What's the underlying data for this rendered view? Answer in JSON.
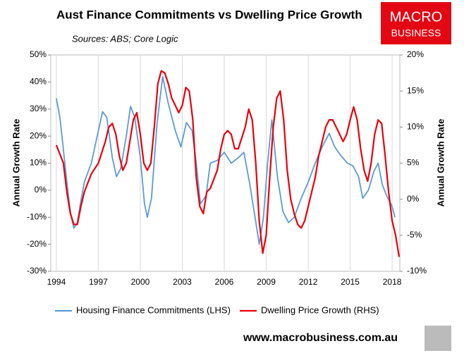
{
  "chart_data": {
    "type": "line",
    "title": "Aust Finance Commitments vs Dwelling Price Growth",
    "subtitle": "Sources: ABS; Core Logic",
    "logo": [
      "MACRO",
      "BUSINESS"
    ],
    "footer": "www.macrobusiness.com.au",
    "ylabel": "Annual Growth Rate",
    "y2label": "Annual Growth Rate",
    "xlim": [
      1993.6,
      2018.55
    ],
    "xticks": [
      1994,
      1997,
      2000,
      2003,
      2006,
      2009,
      2012,
      2015,
      2018
    ],
    "ylim": [
      -30,
      50
    ],
    "yticks": [
      {
        "value": -30,
        "label": "-30%"
      },
      {
        "value": -20,
        "label": "-20%"
      },
      {
        "value": -10,
        "label": "-10%"
      },
      {
        "value": 0,
        "label": "0%"
      },
      {
        "value": 10,
        "label": "10%"
      },
      {
        "value": 20,
        "label": "20%"
      },
      {
        "value": 30,
        "label": "30%"
      },
      {
        "value": 40,
        "label": "40%"
      },
      {
        "value": 50,
        "label": "50%"
      }
    ],
    "y2lim": [
      -10,
      20
    ],
    "y2ticks": [
      {
        "value": -10,
        "label": "-10%"
      },
      {
        "value": -5,
        "label": "-5%"
      },
      {
        "value": 0,
        "label": "0%"
      },
      {
        "value": 5,
        "label": "5%"
      },
      {
        "value": 10,
        "label": "10%"
      },
      {
        "value": 15,
        "label": "15%"
      },
      {
        "value": 20,
        "label": "20%"
      }
    ],
    "grid": "x",
    "legend": "bottom",
    "series": [
      {
        "name": "Housing Finance Commitments (LHS)",
        "color": "#5b9bd5",
        "axis": "y",
        "x": [
          1994,
          1994.25,
          1994.5,
          1994.75,
          1995,
          1995.25,
          1995.5,
          1995.75,
          1996,
          1996.5,
          1997,
          1997.3,
          1997.6,
          1998,
          1998.3,
          1998.6,
          1999,
          1999.3,
          1999.6,
          2000,
          2000.3,
          2000.5,
          2000.8,
          2001.2,
          2001.6,
          2002,
          2002.5,
          2002.9,
          2003.3,
          2003.7,
          2004,
          2004.3,
          2004.7,
          2005,
          2005.5,
          2006,
          2006.5,
          2007,
          2007.4,
          2007.8,
          2008.2,
          2008.5,
          2008.8,
          2009.1,
          2009.4,
          2009.8,
          2010.2,
          2010.6,
          2011,
          2011.5,
          2012,
          2012.5,
          2013,
          2013.5,
          2013.9,
          2014.3,
          2014.8,
          2015.2,
          2015.6,
          2015.9,
          2016.3,
          2016.7,
          2017,
          2017.3,
          2017.6,
          2018,
          2018.2
        ],
        "values": [
          34,
          27,
          15,
          3,
          -8,
          -14,
          -12,
          -4,
          3,
          10,
          22,
          29,
          27,
          12,
          5,
          8,
          20,
          31,
          27,
          12,
          -5,
          -10,
          -3,
          25,
          42,
          32,
          22,
          16,
          25,
          22,
          10,
          -5,
          -2,
          10,
          11,
          14,
          10,
          12,
          14,
          3,
          -10,
          -20,
          -10,
          10,
          26,
          5,
          -8,
          -12,
          -10,
          -3,
          3,
          10,
          16,
          21,
          16,
          13,
          10,
          9,
          5,
          -3,
          0,
          7,
          10,
          2,
          -2,
          -6,
          -10
        ]
      },
      {
        "name": "Dwelling Price Growth (RHS)",
        "color": "#e8000b",
        "axis": "y2",
        "x": [
          1994,
          1994.5,
          1994.75,
          1995,
          1995.25,
          1995.5,
          1995.75,
          1996,
          1996.5,
          1997,
          1997.5,
          1997.75,
          1998,
          1998.25,
          1998.5,
          1998.75,
          1999,
          1999.25,
          1999.5,
          1999.75,
          2000,
          2000.25,
          2000.5,
          2000.75,
          2001,
          2001.25,
          2001.5,
          2001.75,
          2002,
          2002.25,
          2002.5,
          2002.75,
          2003,
          2003.25,
          2003.5,
          2003.75,
          2004,
          2004.25,
          2004.5,
          2004.75,
          2005,
          2005.5,
          2005.75,
          2006,
          2006.25,
          2006.5,
          2006.75,
          2007,
          2007.5,
          2007.75,
          2008,
          2008.25,
          2008.5,
          2008.75,
          2009,
          2009.25,
          2009.5,
          2009.75,
          2010,
          2010.25,
          2010.5,
          2010.75,
          2011,
          2011.25,
          2011.5,
          2011.75,
          2012,
          2012.25,
          2012.5,
          2012.75,
          2013,
          2013.25,
          2013.5,
          2013.75,
          2014,
          2014.25,
          2014.5,
          2014.75,
          2015,
          2015.25,
          2015.5,
          2015.75,
          2016,
          2016.25,
          2016.5,
          2016.75,
          2017,
          2017.25,
          2017.5,
          2017.75,
          2018,
          2018.25,
          2018.5
        ],
        "values": [
          7.5,
          5,
          1,
          -2,
          -3.5,
          -3.5,
          -1,
          1,
          3.5,
          5,
          8,
          10,
          10.5,
          9,
          6,
          4,
          5,
          8,
          11,
          12,
          9,
          5,
          4,
          5,
          10,
          16,
          17.8,
          17.5,
          16,
          14,
          13,
          12,
          13,
          15.5,
          15,
          11,
          3,
          -1,
          -2,
          1,
          1.5,
          4,
          7,
          9,
          9.5,
          9,
          7,
          7,
          10,
          12.5,
          11,
          5,
          -3,
          -7.5,
          -5,
          3,
          10,
          14,
          15,
          11,
          4,
          0,
          -2,
          -3.5,
          -4,
          -3,
          -1,
          1,
          3,
          6,
          8,
          10,
          11,
          11,
          10,
          9,
          8,
          9,
          11,
          12.8,
          11,
          7,
          4,
          2.5,
          5,
          9,
          11,
          10.5,
          6,
          1,
          -3,
          -5,
          -8
        ]
      }
    ]
  }
}
